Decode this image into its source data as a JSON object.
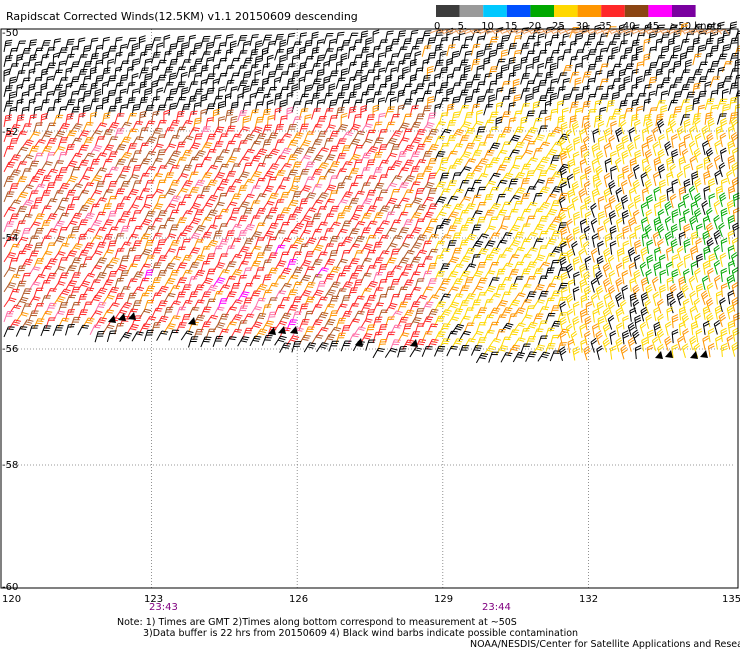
{
  "header": {
    "title": "Rapidscat Corrected Winds(12.5KM) v1.1 20150609 descending"
  },
  "legend": {
    "labels": [
      "0",
      "5",
      "10",
      "15",
      "20",
      "25",
      "30",
      "35",
      "40",
      "45",
      ">50 knots"
    ],
    "colors": [
      "#3c3c3c",
      "#9a9a9a",
      "#00c8ff",
      "#0050ff",
      "#00a800",
      "#ffd800",
      "#ff9600",
      "#ff2828",
      "#8b4513",
      "#ff00ff",
      "#7a00a0"
    ]
  },
  "axes": {
    "x_ticks": [
      "120",
      "123",
      "126",
      "129",
      "132",
      "135"
    ],
    "y_ticks": [
      "-52",
      "-54",
      "-56",
      "-58",
      "-60"
    ],
    "y_top_partial": "-50"
  },
  "time_labels": [
    {
      "text": "23:43",
      "lon": 123
    },
    {
      "text": "23:44",
      "lon": 129.8
    }
  ],
  "notes": {
    "line1": "Note: 1) Times are GMT 2)Times along bottom correspond to measurement at ~50S",
    "line2": "3)Data buffer is 22 hrs from 20150609 4) Black wind barbs indicate possible contamination",
    "credit": "NOAA/NESDIS/Center for Satellite Applications and Resea"
  },
  "extent": {
    "lon_min": 120,
    "lon_max": 135,
    "lat_top": -50,
    "lat_bottom": -60
  }
}
